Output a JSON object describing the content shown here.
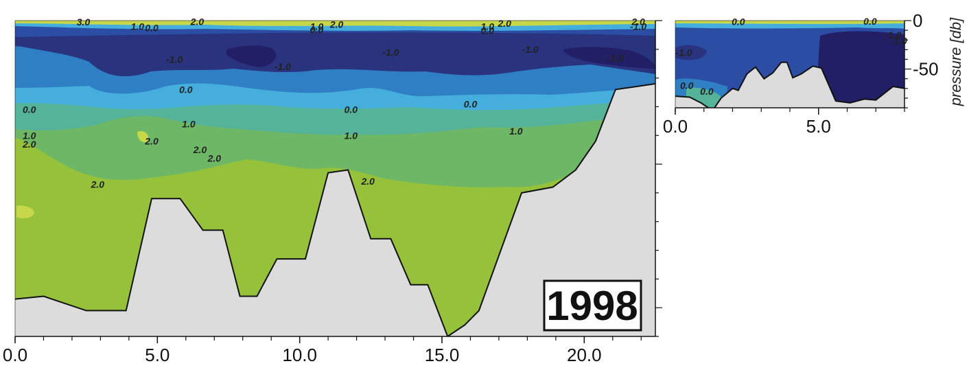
{
  "colors": {
    "t_minus1": "#29337e",
    "t_minus1_deep": "#221f66",
    "t_minus05": "#2b4ea4",
    "t_0": "#2f7fc4",
    "t_05": "#45aedd",
    "t_1": "#55b39a",
    "t_15": "#6db766",
    "t_2": "#95c23a",
    "t_3": "#c6d84a",
    "bottom": "#dcdcdc",
    "outline": "#111111"
  },
  "chart_data": [
    {
      "type": "heatmap",
      "subtype": "contour-section",
      "year_label": "1998",
      "xlabel": "",
      "ylabel": "",
      "xlim": [
        0,
        22.5
      ],
      "ylim_pressure": [
        0,
        110
      ],
      "x_ticks": [
        "0.0",
        "5.0",
        "10.0",
        "15.0",
        "20.0"
      ],
      "x_tick_values": [
        0,
        5,
        10,
        15,
        20
      ],
      "y_axis_side": "right",
      "contour_levels": [
        -1.0,
        0.0,
        1.0,
        2.0,
        3.0
      ],
      "contour_labels": [
        {
          "text": "3.0",
          "x": 2.4,
          "p": 0.5
        },
        {
          "text": "1.0",
          "x": 4.3,
          "p": 2.0
        },
        {
          "text": "0.0",
          "x": 4.8,
          "p": 2.5
        },
        {
          "text": "2.0",
          "x": 6.4,
          "p": 0.3
        },
        {
          "text": "1.0",
          "x": 10.6,
          "p": 2.0
        },
        {
          "text": "0.0",
          "x": 10.6,
          "p": 3.2
        },
        {
          "text": "2.0",
          "x": 11.3,
          "p": 1.3
        },
        {
          "text": "1.0",
          "x": 16.6,
          "p": 2.0
        },
        {
          "text": "0.0",
          "x": 16.6,
          "p": 3.5
        },
        {
          "text": "2.0",
          "x": 17.2,
          "p": 1.0
        },
        {
          "text": "2.0",
          "x": 21.9,
          "p": 0.3
        },
        {
          "text": "-1.0",
          "x": 21.9,
          "p": 2.0
        },
        {
          "text": "-1.0",
          "x": 5.6,
          "p": 13.5
        },
        {
          "text": "-1.0",
          "x": 9.4,
          "p": 16.0
        },
        {
          "text": "-1.0",
          "x": 13.2,
          "p": 11.0
        },
        {
          "text": "-1.0",
          "x": 18.1,
          "p": 10.0
        },
        {
          "text": "-1.0",
          "x": 21.1,
          "p": 13.0
        },
        {
          "text": "0.0",
          "x": 6.0,
          "p": 24.0
        },
        {
          "text": "0.0",
          "x": 0.5,
          "p": 31.0
        },
        {
          "text": "0.0",
          "x": 11.8,
          "p": 31.0
        },
        {
          "text": "0.0",
          "x": 16.0,
          "p": 29.0
        },
        {
          "text": "1.0",
          "x": 6.1,
          "p": 36.0
        },
        {
          "text": "1.0",
          "x": 11.8,
          "p": 40.0
        },
        {
          "text": "1.0",
          "x": 17.6,
          "p": 38.5
        },
        {
          "text": "1.0",
          "x": 0.5,
          "p": 40.0
        },
        {
          "text": "2.0",
          "x": 0.5,
          "p": 43.0
        },
        {
          "text": "2.0",
          "x": 4.8,
          "p": 42.0
        },
        {
          "text": "2.0",
          "x": 6.5,
          "p": 45.0
        },
        {
          "text": "2.0",
          "x": 7.0,
          "p": 48.0
        },
        {
          "text": "2.0",
          "x": 2.9,
          "p": 57.0
        },
        {
          "text": "2.0",
          "x": 12.4,
          "p": 56.0
        }
      ],
      "bottom_profile": [
        [
          0,
          97
        ],
        [
          1,
          96
        ],
        [
          2.5,
          101
        ],
        [
          3.9,
          101
        ],
        [
          4.8,
          62
        ],
        [
          5.8,
          62
        ],
        [
          6.6,
          73
        ],
        [
          7.3,
          73
        ],
        [
          7.9,
          96
        ],
        [
          8.5,
          96
        ],
        [
          9.2,
          83
        ],
        [
          10.2,
          83
        ],
        [
          11.0,
          53
        ],
        [
          11.7,
          52
        ],
        [
          12.5,
          76
        ],
        [
          13.2,
          76
        ],
        [
          13.9,
          92
        ],
        [
          14.5,
          92
        ],
        [
          15.2,
          110
        ],
        [
          15.8,
          106
        ],
        [
          16.3,
          101
        ],
        [
          17.8,
          60
        ],
        [
          18.9,
          58
        ],
        [
          19.7,
          52
        ],
        [
          20.4,
          42
        ],
        [
          21.1,
          24
        ],
        [
          21.8,
          23
        ],
        [
          22.5,
          22
        ]
      ]
    },
    {
      "type": "heatmap",
      "subtype": "contour-section",
      "xlabel": "",
      "ylabel": "pressure [db]",
      "xlim": [
        0,
        8
      ],
      "ylim_pressure": [
        0,
        90
      ],
      "x_ticks": [
        "0.0",
        "5.0"
      ],
      "x_tick_values": [
        0,
        5
      ],
      "y_ticks": [
        "0",
        "-50"
      ],
      "y_tick_values": [
        0,
        -50
      ],
      "y_axis_side": "right",
      "contour_labels": [
        {
          "text": "0.0",
          "x": 2.2,
          "p": 1.0
        },
        {
          "text": "0.0",
          "x": 6.8,
          "p": 0.8
        },
        {
          "text": "-1.0",
          "x": 7.6,
          "p": 15.0
        },
        {
          "text": "-1.0",
          "x": 7.8,
          "p": 21.0
        },
        {
          "text": "-1.0",
          "x": 0.3,
          "p": 33.0
        },
        {
          "text": "0.0",
          "x": 0.4,
          "p": 67.0
        },
        {
          "text": "0.0",
          "x": 1.1,
          "p": 73.0
        }
      ],
      "bottom_profile": [
        [
          0,
          78
        ],
        [
          0.5,
          79
        ],
        [
          0.9,
          85
        ],
        [
          1.3,
          93
        ],
        [
          1.6,
          80
        ],
        [
          2.0,
          70
        ],
        [
          2.2,
          72
        ],
        [
          2.5,
          55
        ],
        [
          2.8,
          48
        ],
        [
          3.1,
          60
        ],
        [
          3.4,
          54
        ],
        [
          3.7,
          43
        ],
        [
          3.9,
          43
        ],
        [
          4.1,
          59
        ],
        [
          4.4,
          55
        ],
        [
          4.8,
          47
        ],
        [
          5.1,
          49
        ],
        [
          5.6,
          83
        ],
        [
          6.1,
          85
        ],
        [
          6.6,
          81
        ],
        [
          7.0,
          82
        ],
        [
          7.6,
          68
        ],
        [
          8.0,
          70
        ]
      ]
    }
  ]
}
